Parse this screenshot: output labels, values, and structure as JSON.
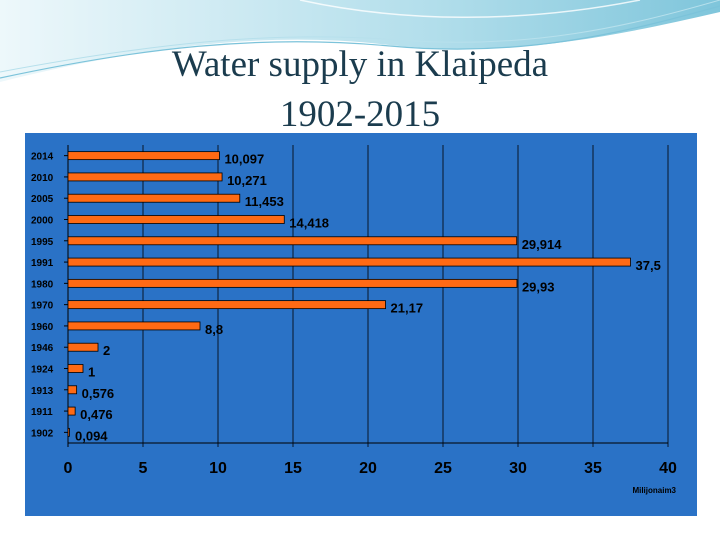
{
  "title": {
    "line1": "Water supply in Klaipeda",
    "line2": "1902-2015"
  },
  "colors": {
    "panel": "#2a72c6",
    "bar": "#ff6a14",
    "bar_stroke": "#000000",
    "grid": "#000000",
    "title": "#1b3c4e"
  },
  "chart_data": {
    "type": "bar",
    "orientation": "horizontal",
    "title": "Water supply in Klaipeda 1902-2015",
    "categories": [
      "2014",
      "2010",
      "2005",
      "2000",
      "1995",
      "1991",
      "1980",
      "1970",
      "1960",
      "1946",
      "1924",
      "1913",
      "1911",
      "1902"
    ],
    "values": [
      10.097,
      10.271,
      11.453,
      14.418,
      29.914,
      37.5,
      29.93,
      21.17,
      8.8,
      2,
      1,
      0.576,
      0.476,
      0.094
    ],
    "value_labels": [
      "10,097",
      "10,271",
      "11,453",
      "14,418",
      "29,914",
      "37,5",
      "29,93",
      "21,17",
      "8,8",
      "2",
      "1",
      "0,576",
      "0,476",
      "0,094"
    ],
    "xlim": [
      0,
      40
    ],
    "xticks": [
      "0",
      "5",
      "10",
      "15",
      "20",
      "25",
      "30",
      "35",
      "40"
    ],
    "xlabel": "Milijonaim3",
    "ylabel": "",
    "grid": "vertical",
    "legend": "none"
  }
}
